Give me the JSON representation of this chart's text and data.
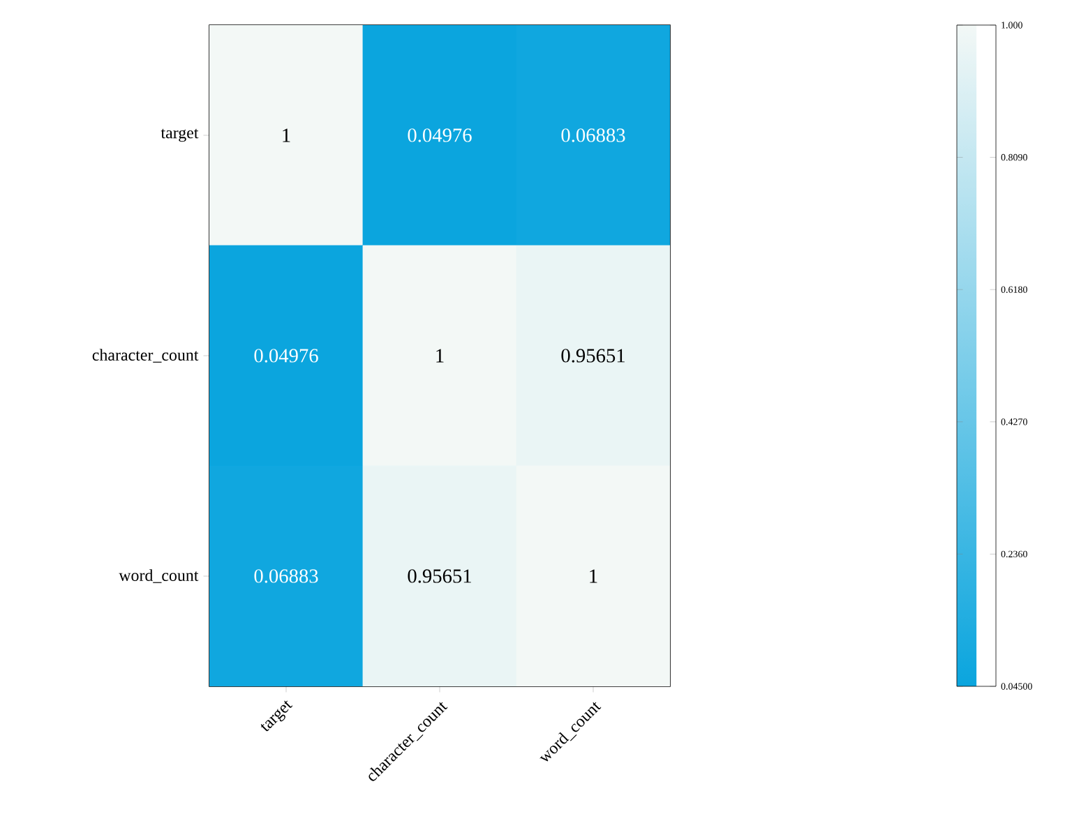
{
  "chart_data": {
    "type": "heatmap",
    "categories": [
      "target",
      "character_count",
      "word_count"
    ],
    "y_categories": [
      "target",
      "character_count",
      "word_count"
    ],
    "cells": [
      [
        1,
        0.04976,
        0.06883
      ],
      [
        0.04976,
        1,
        0.95651
      ],
      [
        0.06883,
        0.95651,
        1
      ]
    ],
    "data_labels": true,
    "colors": [
      "#0aa5de",
      "#f3f8f6"
    ],
    "clim": [
      0.045,
      1.0
    ],
    "cticks": [
      {
        "value": 0.045,
        "label": "0.04500"
      },
      {
        "value": 0.236,
        "label": "0.2360"
      },
      {
        "value": 0.427,
        "label": "0.4270"
      },
      {
        "value": 0.618,
        "label": "0.6180"
      },
      {
        "value": 0.809,
        "label": "0.8090"
      },
      {
        "value": 1.0,
        "label": "1.000"
      }
    ]
  }
}
